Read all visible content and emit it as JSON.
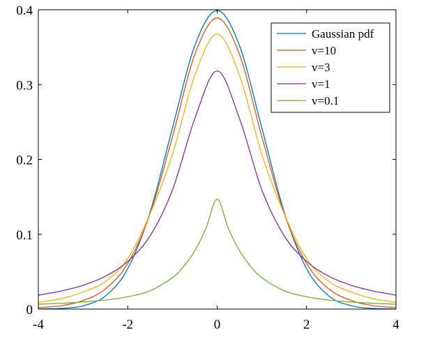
{
  "chart_data": {
    "type": "line",
    "title": "",
    "xlabel": "",
    "ylabel": "",
    "xlim": [
      -4,
      4
    ],
    "ylim": [
      0,
      0.4
    ],
    "xticks": [
      -4,
      -2,
      0,
      2,
      4
    ],
    "xtick_labels": [
      "-4",
      "-2",
      "0",
      "2",
      "4"
    ],
    "yticks": [
      0,
      0.1,
      0.2,
      0.3,
      0.4
    ],
    "ytick_labels": [
      "0",
      "0.1",
      "0.2",
      "0.3",
      "0.4"
    ],
    "grid": false,
    "legend_position": "top-right",
    "series": [
      {
        "name": "Gaussian pdf",
        "color": "#0072BD",
        "x": [
          -4,
          -3.5,
          -3,
          -2.5,
          -2,
          -1.5,
          -1,
          -0.5,
          0,
          0.5,
          1,
          1.5,
          2,
          2.5,
          3,
          3.5,
          4
        ],
        "y": [
          0.0001,
          0.0009,
          0.0044,
          0.0175,
          0.054,
          0.1295,
          0.242,
          0.352,
          0.399,
          0.352,
          0.242,
          0.1295,
          0.054,
          0.0175,
          0.0044,
          0.0009,
          0.0001
        ]
      },
      {
        "name": "v=10",
        "color": "#D95319",
        "x": [
          -4,
          -3.5,
          -3,
          -2.5,
          -2,
          -1.5,
          -1,
          -0.5,
          0,
          0.5,
          1,
          1.5,
          2,
          2.5,
          3,
          3.5,
          4
        ],
        "y": [
          0.002,
          0.0044,
          0.0114,
          0.0269,
          0.061,
          0.1274,
          0.2304,
          0.3402,
          0.389,
          0.3402,
          0.2304,
          0.1274,
          0.061,
          0.0269,
          0.0114,
          0.0044,
          0.002
        ]
      },
      {
        "name": "v=3",
        "color": "#EDB120",
        "x": [
          -4,
          -3.5,
          -3,
          -2.5,
          -2,
          -1.5,
          -1,
          -0.5,
          0,
          0.5,
          1,
          1.5,
          2,
          2.5,
          3,
          3.5,
          4
        ],
        "y": [
          0.0092,
          0.0137,
          0.0229,
          0.0368,
          0.0675,
          0.1274,
          0.2067,
          0.3125,
          0.3676,
          0.3125,
          0.2067,
          0.1274,
          0.0675,
          0.0368,
          0.0229,
          0.0137,
          0.0092
        ]
      },
      {
        "name": "v=1",
        "color": "#7E2F8E",
        "x": [
          -4,
          -3.5,
          -3,
          -2.5,
          -2,
          -1.5,
          -1,
          -0.5,
          0,
          0.5,
          1,
          1.5,
          2,
          2.5,
          3,
          3.5,
          4
        ],
        "y": [
          0.0187,
          0.024,
          0.0318,
          0.0439,
          0.0637,
          0.0979,
          0.1592,
          0.2546,
          0.3183,
          0.2546,
          0.1592,
          0.0979,
          0.0637,
          0.0439,
          0.0318,
          0.024,
          0.0187
        ]
      },
      {
        "name": "v=0.1",
        "color": "#77AC30",
        "x": [
          -4,
          -3.5,
          -3,
          -2.5,
          -2,
          -1.5,
          -1,
          -0.75,
          -0.5,
          -0.25,
          0,
          0.25,
          0.5,
          0.75,
          1,
          1.5,
          2,
          2.5,
          3,
          3.5,
          4
        ],
        "y": [
          0.0065,
          0.0078,
          0.0095,
          0.012,
          0.0165,
          0.0245,
          0.042,
          0.057,
          0.078,
          0.108,
          0.147,
          0.108,
          0.078,
          0.057,
          0.042,
          0.0245,
          0.0165,
          0.012,
          0.0095,
          0.0078,
          0.0065
        ]
      }
    ]
  }
}
